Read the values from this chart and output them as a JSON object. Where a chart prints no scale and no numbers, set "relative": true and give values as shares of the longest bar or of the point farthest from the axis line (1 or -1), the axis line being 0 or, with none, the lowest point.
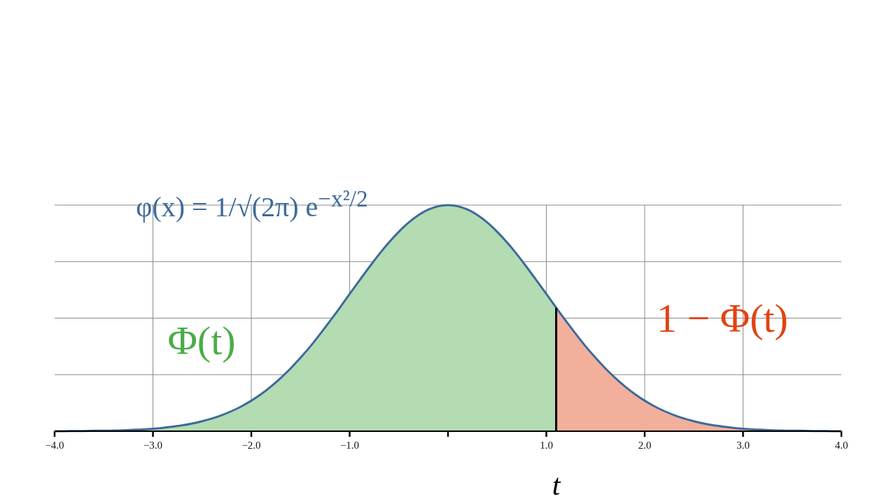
{
  "chart_data": {
    "type": "area",
    "relative": true,
    "grid": true,
    "xlim": [
      -4,
      4
    ],
    "xticks": [
      {
        "value": -4,
        "label": "−4.0"
      },
      {
        "value": -3,
        "label": "−3.0"
      },
      {
        "value": -2,
        "label": "−2.0"
      },
      {
        "value": -1,
        "label": "−1.0"
      },
      {
        "value": 0,
        "label": null
      },
      {
        "value": 1,
        "label": "1.0"
      },
      {
        "value": 2,
        "label": "2.0"
      },
      {
        "value": 3,
        "label": "3.0"
      },
      {
        "value": 4,
        "label": "4.0"
      }
    ],
    "series": [
      {
        "type": "line",
        "name": "φ(x) = 1/√(2π) e$^{−x²/2}$",
        "color": "#3e6a9a",
        "x": [
          -4,
          -3.9,
          -3.8,
          -3.7,
          -3.6,
          -3.5,
          -3.4,
          -3.3,
          -3.2,
          -3.1,
          -3,
          -2.9,
          -2.8,
          -2.7,
          -2.6,
          -2.5,
          -2.4,
          -2.3,
          -2.2,
          -2.1,
          -2,
          -1.9,
          -1.8,
          -1.7,
          -1.6,
          -1.5,
          -1.4,
          -1.3,
          -1.2,
          -1.1,
          -1,
          -0.9,
          -0.8,
          -0.7,
          -0.6,
          -0.5,
          -0.4,
          -0.3,
          -0.2,
          -0.1,
          0,
          0.1,
          0.2,
          0.3,
          0.4,
          0.5,
          0.6,
          0.7,
          0.8,
          0.9,
          1,
          1.1,
          1.2,
          1.3,
          1.4,
          1.5,
          1.6,
          1.7,
          1.8,
          1.9,
          2,
          2.1,
          2.2,
          2.3,
          2.4,
          2.5,
          2.6,
          2.7,
          2.8,
          2.9,
          3,
          3.1,
          3.2,
          3.3,
          3.4,
          3.5,
          3.6,
          3.7,
          3.8,
          3.9,
          4
        ],
        "values": [
          0,
          0,
          0.001,
          0.001,
          0.002,
          0.002,
          0.003,
          0.004,
          0.006,
          0.008,
          0.011,
          0.015,
          0.02,
          0.026,
          0.034,
          0.044,
          0.056,
          0.071,
          0.089,
          0.11,
          0.135,
          0.164,
          0.198,
          0.236,
          0.278,
          0.325,
          0.375,
          0.43,
          0.487,
          0.546,
          0.607,
          0.667,
          0.726,
          0.783,
          0.835,
          0.882,
          0.923,
          0.956,
          0.98,
          0.995,
          1,
          0.995,
          0.98,
          0.956,
          0.923,
          0.882,
          0.835,
          0.783,
          0.726,
          0.667,
          0.607,
          0.546,
          0.487,
          0.43,
          0.375,
          0.325,
          0.278,
          0.236,
          0.198,
          0.164,
          0.135,
          0.11,
          0.089,
          0.071,
          0.056,
          0.044,
          0.034,
          0.026,
          0.02,
          0.015,
          0.011,
          0.008,
          0.006,
          0.004,
          0.003,
          0.002,
          0.002,
          0.001,
          0.001,
          0,
          0
        ]
      },
      {
        "name": "Φ(t)",
        "color": "#b3dcb3",
        "x": [
          -4,
          -3.9,
          -3.8,
          -3.7,
          -3.6,
          -3.5,
          -3.4,
          -3.3,
          -3.2,
          -3.1,
          -3,
          -2.9,
          -2.8,
          -2.7,
          -2.6,
          -2.5,
          -2.4,
          -2.3,
          -2.2,
          -2.1,
          -2,
          -1.9,
          -1.8,
          -1.7,
          -1.6,
          -1.5,
          -1.4,
          -1.3,
          -1.2,
          -1.1,
          -1,
          -0.9,
          -0.8,
          -0.7,
          -0.6,
          -0.5,
          -0.4,
          -0.3,
          -0.2,
          -0.1,
          0,
          0.1,
          0.2,
          0.3,
          0.4,
          0.5,
          0.6,
          0.7,
          0.8,
          0.9,
          1,
          1.1
        ],
        "values": [
          0,
          0,
          0.001,
          0.001,
          0.002,
          0.002,
          0.003,
          0.004,
          0.006,
          0.008,
          0.011,
          0.015,
          0.02,
          0.026,
          0.034,
          0.044,
          0.056,
          0.071,
          0.089,
          0.11,
          0.135,
          0.164,
          0.198,
          0.236,
          0.278,
          0.325,
          0.375,
          0.43,
          0.487,
          0.546,
          0.607,
          0.667,
          0.726,
          0.783,
          0.835,
          0.882,
          0.923,
          0.956,
          0.98,
          0.995,
          1,
          0.995,
          0.98,
          0.956,
          0.923,
          0.882,
          0.835,
          0.783,
          0.726,
          0.667,
          0.607,
          0.546
        ]
      },
      {
        "name": "1 − Φ(t)",
        "color": "#f2b09c",
        "x": [
          1.1,
          1.2,
          1.3,
          1.4,
          1.5,
          1.6,
          1.7,
          1.8,
          1.9,
          2,
          2.1,
          2.2,
          2.3,
          2.4,
          2.5,
          2.6,
          2.7,
          2.8,
          2.9,
          3,
          3.1,
          3.2,
          3.3,
          3.4,
          3.5,
          3.6,
          3.7,
          3.8,
          3.9,
          4
        ],
        "values": [
          0.546,
          0.487,
          0.43,
          0.375,
          0.325,
          0.278,
          0.236,
          0.198,
          0.164,
          0.135,
          0.11,
          0.089,
          0.071,
          0.056,
          0.044,
          0.034,
          0.026,
          0.02,
          0.015,
          0.011,
          0.008,
          0.006,
          0.004,
          0.003,
          0.002,
          0.002,
          0.001,
          0.001,
          0,
          0
        ]
      }
    ],
    "ref_lines": [
      {
        "axis": "x",
        "value": 1.1,
        "label": "t",
        "color": "#000000"
      }
    ]
  }
}
